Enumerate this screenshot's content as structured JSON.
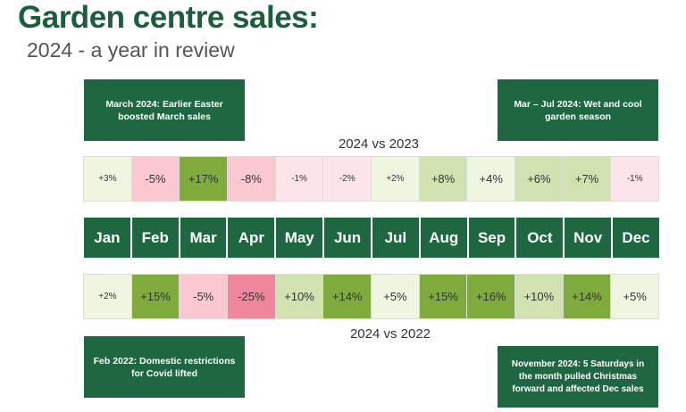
{
  "title": "Garden centre sales:",
  "subtitle": "2024 - a year in review",
  "notes": {
    "march": "March 2024: Earlier Easter boosted March sales",
    "summer": "Mar – Jul 2024: Wet and cool garden season",
    "feb2022": "Feb 2022: Domestic restrictions for Covid lifted",
    "nov2024": "November 2024: 5 Saturdays in the month pulled Christmas forward and affected Dec sales"
  },
  "colors": {
    "brand": "#1f6741",
    "strong_growth": "#7faa3c",
    "growth": "#cfe2b0",
    "slight_growth": "#eef5e1",
    "slight_decline": "#fde4e8",
    "decline": "#fcc8d0",
    "strong_decline": "#f0869c"
  },
  "chart_data": {
    "type": "heatmap",
    "categories": [
      "Jan",
      "Feb",
      "Mar",
      "Apr",
      "May",
      "Jun",
      "Jul",
      "Aug",
      "Sep",
      "Oct",
      "Nov",
      "Dec"
    ],
    "series": [
      {
        "name": "2024 vs 2023",
        "labels": [
          "+3%",
          "-5%",
          "+17%",
          "-8%",
          "-1%",
          "-2%",
          "+2%",
          "+8%",
          "+4%",
          "+6%",
          "+7%",
          "-1%"
        ],
        "values": [
          3,
          -5,
          17,
          -8,
          -1,
          -2,
          2,
          8,
          4,
          6,
          7,
          -1
        ]
      },
      {
        "name": "2024 vs 2022",
        "labels": [
          "+2%",
          "+15%",
          "-5%",
          "-25%",
          "+10%",
          "+14%",
          "+5%",
          "+15%",
          "+16%",
          "+10%",
          "+14%",
          "+5%"
        ],
        "values": [
          2,
          15,
          -5,
          -25,
          10,
          14,
          5,
          15,
          16,
          10,
          14,
          5
        ]
      }
    ],
    "unit": "%"
  }
}
